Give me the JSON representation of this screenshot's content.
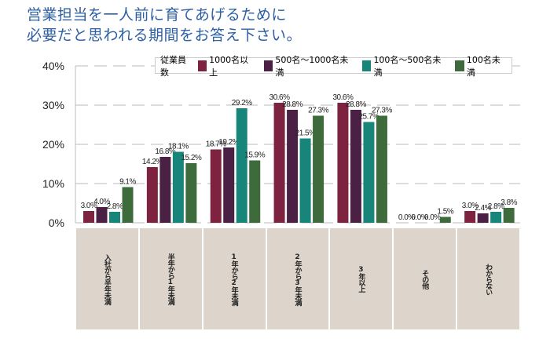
{
  "title_lines": [
    "営業担当を一人前に育てあげるために",
    "必要だと思われる期間をお答え下さい。"
  ],
  "chart_data": {
    "type": "bar",
    "title": "営業担当を一人前に育てあげるために必要だと思われる期間をお答え下さい。",
    "categories": [
      "入社から半年未満",
      "半年から1年未満",
      "1年から2年未満",
      "2年から3年未満",
      "3年以上",
      "その他",
      "わからない"
    ],
    "legend_title": "従業員数",
    "legend_position": "top-right",
    "series": [
      {
        "name": "1000名以上",
        "color": "#7d2340",
        "values": [
          3.0,
          14.2,
          18.7,
          30.6,
          30.6,
          0.0,
          3.0
        ]
      },
      {
        "name": "500名〜1000名未満",
        "color": "#4b2045",
        "values": [
          4.0,
          16.8,
          19.2,
          28.8,
          28.8,
          0.0,
          2.4
        ]
      },
      {
        "name": "100名〜500名未満",
        "color": "#17857a",
        "values": [
          2.8,
          18.1,
          29.2,
          21.5,
          25.7,
          0.0,
          2.8
        ]
      },
      {
        "name": "100名未満",
        "color": "#3e6b3c",
        "values": [
          9.1,
          15.2,
          15.9,
          27.3,
          27.3,
          1.5,
          3.8
        ]
      }
    ],
    "yticks": [
      "0%",
      "10%",
      "20%",
      "30%",
      "40%"
    ],
    "ylim": [
      0,
      40
    ],
    "grid": true
  }
}
